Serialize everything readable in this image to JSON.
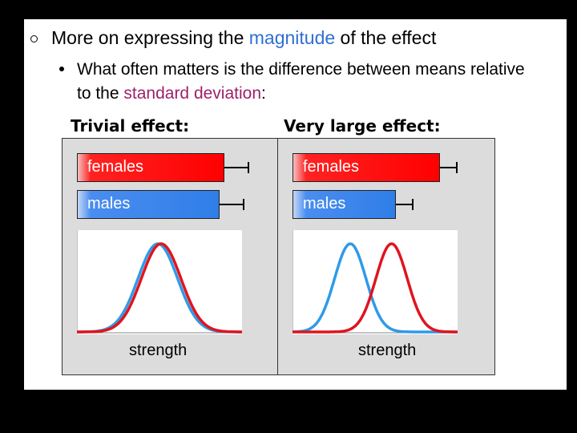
{
  "bullet1": {
    "pre": "More on expressing the ",
    "highlight": "magnitude",
    "post": " of the effect"
  },
  "bullet2": {
    "pre": "What often matters is the difference between means relative to the ",
    "highlight": "standard deviation",
    "post": ":"
  },
  "panels": [
    {
      "title": "Trivial effect:",
      "bars": [
        {
          "label": "females",
          "mean_fraction": 1.0,
          "sd_fraction": 0.17
        },
        {
          "label": "males",
          "mean_fraction": 0.97,
          "sd_fraction": 0.17
        }
      ],
      "xlabel": "strength",
      "curves": {
        "male_mean": 0.49,
        "female_mean": 0.51,
        "sd": 0.12
      }
    },
    {
      "title": "Very large effect:",
      "bars": [
        {
          "label": "females",
          "mean_fraction": 1.0,
          "sd_fraction": 0.12
        },
        {
          "label": "males",
          "mean_fraction": 0.7,
          "sd_fraction": 0.12
        }
      ],
      "xlabel": "strength",
      "curves": {
        "male_mean": 0.35,
        "female_mean": 0.6,
        "sd": 0.095
      }
    }
  ],
  "colors": {
    "female": "#e0141e",
    "male": "#2f9ae8",
    "highlight_blue": "#2f6fd1",
    "highlight_magenta": "#a0206b"
  }
}
